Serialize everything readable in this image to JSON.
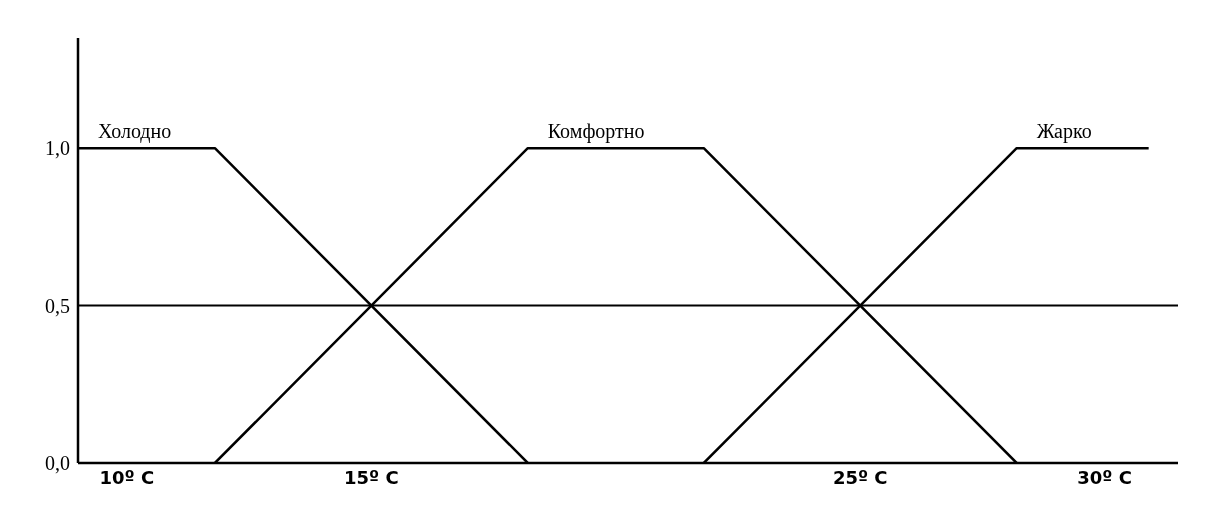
{
  "chart_data": {
    "type": "line",
    "xlim": [
      9,
      31.5
    ],
    "ylim": [
      0,
      1.35
    ],
    "xticks": [
      {
        "value": 10,
        "label": "10º C"
      },
      {
        "value": 15,
        "label": "15º C"
      },
      {
        "value": 25,
        "label": "25º C"
      },
      {
        "value": 30,
        "label": "30º C"
      }
    ],
    "yticks": [
      {
        "value": 0,
        "label": "0,0"
      },
      {
        "value": 0.5,
        "label": "0,5"
      },
      {
        "value": 1,
        "label": "1,0"
      }
    ],
    "series": [
      {
        "name": "Холодно",
        "color": "#000000",
        "x": [
          9,
          11.8,
          18.2
        ],
        "values": [
          1,
          1,
          0
        ]
      },
      {
        "name": "Комфортно",
        "color": "#000000",
        "x": [
          11.8,
          18.2,
          21.8,
          28.2
        ],
        "values": [
          0,
          1,
          1,
          0
        ]
      },
      {
        "name": "Жарко",
        "color": "#000000",
        "x": [
          21.8,
          28.2,
          30.9
        ],
        "values": [
          0,
          1,
          1
        ]
      }
    ],
    "ref_lines": [
      {
        "axis": "y",
        "value": 0.5,
        "color": "#000000"
      }
    ],
    "grid": false,
    "legend": false,
    "marker": "none",
    "line_style": "solid"
  }
}
